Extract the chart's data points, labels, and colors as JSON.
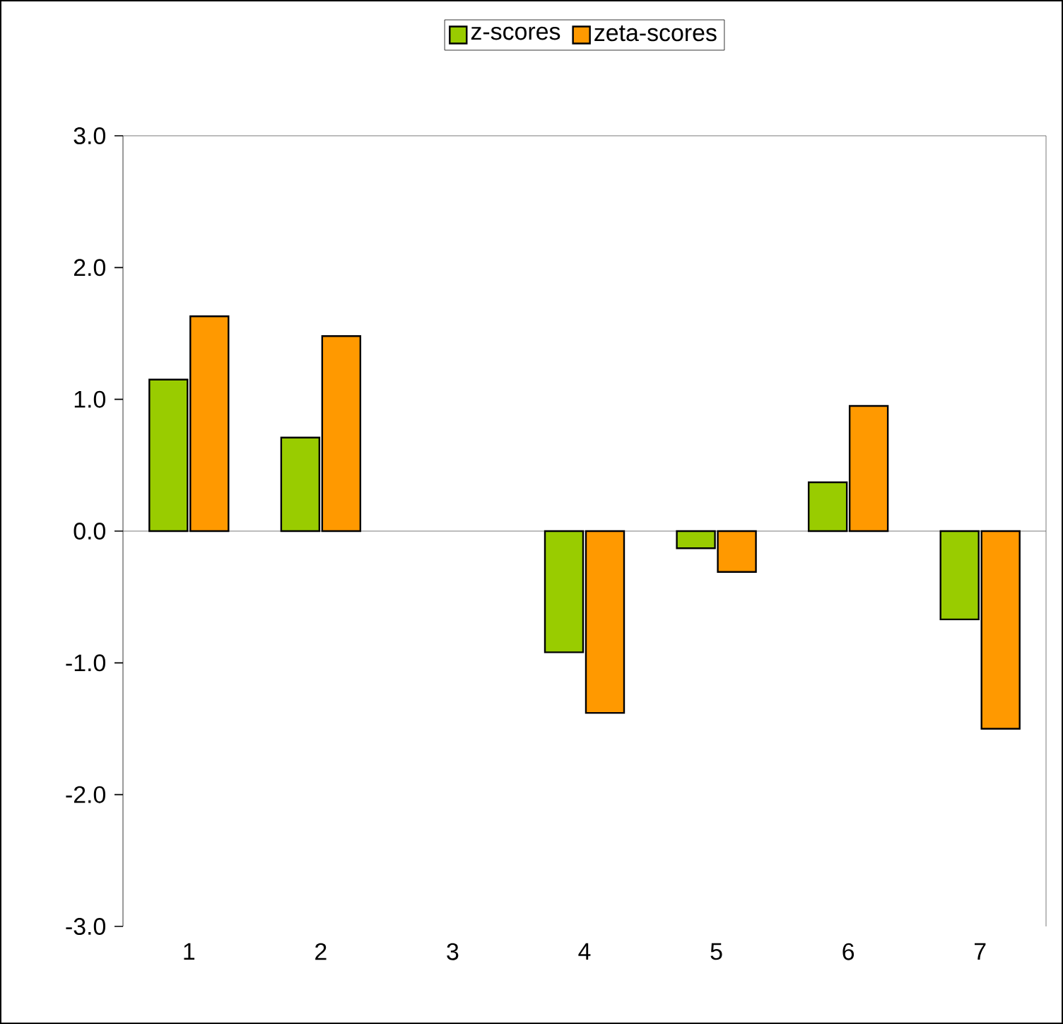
{
  "chart_data": {
    "type": "bar",
    "categories": [
      "1",
      "2",
      "3",
      "4",
      "5",
      "6",
      "7"
    ],
    "series": [
      {
        "name": "z-scores",
        "color": "#99cc00",
        "values": [
          1.15,
          0.71,
          null,
          -0.92,
          -0.13,
          0.37,
          -0.67
        ]
      },
      {
        "name": "zeta-scores",
        "color": "#ff9900",
        "values": [
          1.63,
          1.48,
          null,
          -1.38,
          -0.31,
          0.95,
          -1.5
        ]
      }
    ],
    "ylim": [
      -3,
      3
    ],
    "yticks": [
      {
        "value": -3,
        "label": "-3.0"
      },
      {
        "value": -2,
        "label": "-2.0"
      },
      {
        "value": -1,
        "label": "-1.0"
      },
      {
        "value": 0,
        "label": "0.0"
      },
      {
        "value": 1,
        "label": "1.0"
      },
      {
        "value": 2,
        "label": "2.0"
      },
      {
        "value": 3,
        "label": "3.0"
      }
    ],
    "legend": "top"
  }
}
